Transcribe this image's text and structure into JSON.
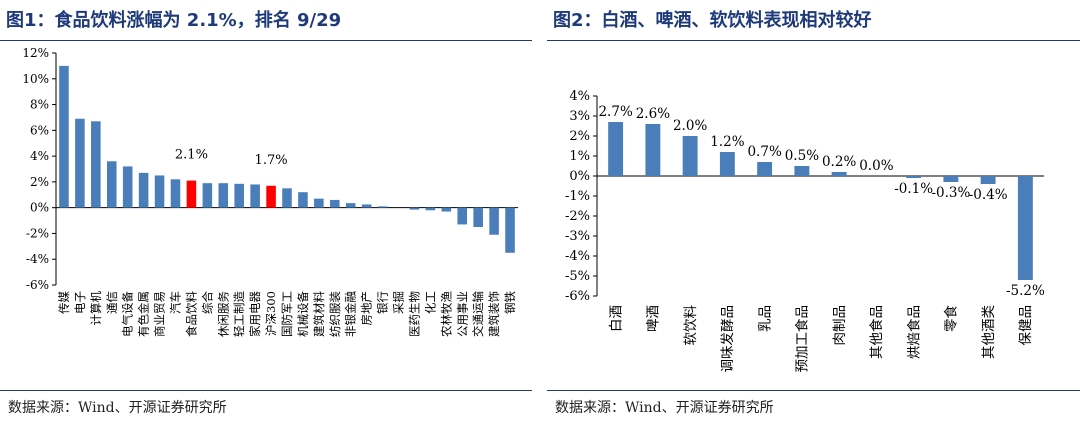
{
  "left_panel": {
    "title": "图1：食品饮料涨幅为 2.1%，排名 9/29",
    "source": "数据来源：Wind、开源证券研究所"
  },
  "right_panel": {
    "title": "图2：白酒、啤酒、软饮料表现相对较好",
    "source": "数据来源：Wind、开源证券研究所"
  },
  "colors": {
    "bar": "#4a7ebb",
    "highlight": "#ff0000",
    "title": "#1f3a7a"
  },
  "chart_data": [
    {
      "type": "bar",
      "title": "食品饮料涨幅为 2.1%，排名 9/29",
      "xlabel": "",
      "ylabel": "",
      "ylim": [
        -6,
        12
      ],
      "yticks": [
        "12%",
        "10%",
        "8%",
        "6%",
        "4%",
        "2%",
        "0%",
        "-2%",
        "-4%",
        "-6%"
      ],
      "categories": [
        "传媒",
        "电子",
        "计算机",
        "通信",
        "电气设备",
        "有色金属",
        "商业贸易",
        "汽车",
        "食品饮料",
        "综合",
        "休闲服务",
        "轻工制造",
        "家用电器",
        "沪深300",
        "国防军工",
        "机械设备",
        "建筑材料",
        "纺织服装",
        "非银金融",
        "房地产",
        "银行",
        "采掘",
        "医药生物",
        "化工",
        "农林牧渔",
        "公用事业",
        "交通运输",
        "建筑装饰",
        "钢铁"
      ],
      "values": [
        11.0,
        6.9,
        6.7,
        3.6,
        3.2,
        2.7,
        2.5,
        2.2,
        2.1,
        1.9,
        1.9,
        1.85,
        1.8,
        1.7,
        1.5,
        1.2,
        0.7,
        0.6,
        0.35,
        0.25,
        0.1,
        0.0,
        -0.15,
        -0.2,
        -0.3,
        -1.3,
        -1.5,
        -2.1,
        -3.5
      ],
      "highlight": [
        "食品饮料",
        "沪深300"
      ],
      "annotations": [
        {
          "category": "食品饮料",
          "text": "2.1%"
        },
        {
          "category": "沪深300",
          "text": "1.7%"
        }
      ]
    },
    {
      "type": "bar",
      "title": "白酒、啤酒、软饮料表现相对较好",
      "xlabel": "",
      "ylabel": "",
      "ylim": [
        -6,
        4
      ],
      "yticks": [
        "4%",
        "3%",
        "2%",
        "1%",
        "0%",
        "-1%",
        "-2%",
        "-3%",
        "-4%",
        "-5%",
        "-6%"
      ],
      "categories": [
        "白酒",
        "啤酒",
        "软饮料",
        "调味发酵品",
        "乳品",
        "预加工食品",
        "肉制品",
        "其他食品",
        "烘焙食品",
        "零食",
        "其他酒类",
        "保健品"
      ],
      "values": [
        2.7,
        2.6,
        2.0,
        1.2,
        0.7,
        0.5,
        0.2,
        0.0,
        -0.1,
        -0.3,
        -0.4,
        -5.2
      ],
      "data_labels": [
        "2.7%",
        "2.6%",
        "2.0%",
        "1.2%",
        "0.7%",
        "0.5%",
        "0.2%",
        "0.0%",
        "-0.1%",
        "-0.3%",
        "-0.4%",
        "-5.2%"
      ]
    }
  ]
}
